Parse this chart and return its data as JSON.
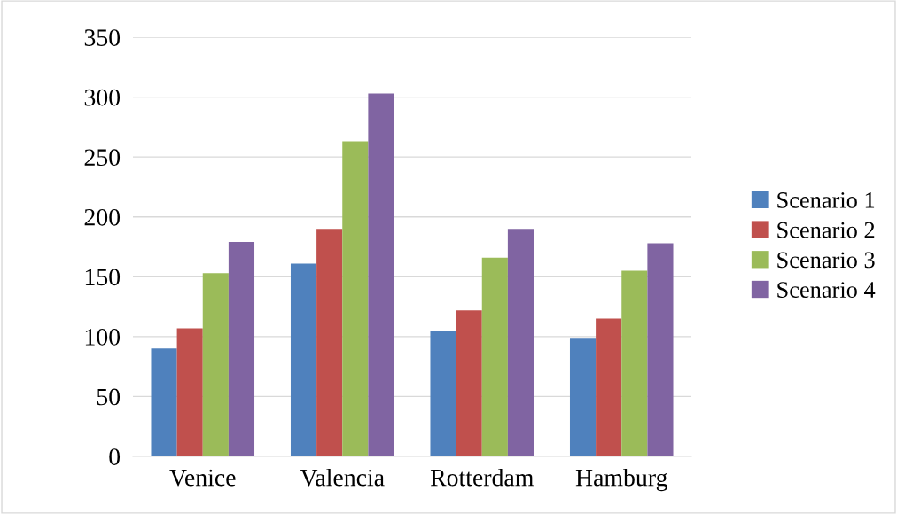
{
  "chart_data": {
    "type": "bar",
    "categories": [
      "Venice",
      "Valencia",
      "Rotterdam",
      "Hamburg"
    ],
    "series": [
      {
        "name": "Scenario 1",
        "color": "#4f81bd",
        "values": [
          90,
          161,
          105,
          99
        ]
      },
      {
        "name": "Scenario 2",
        "color": "#c0504d",
        "values": [
          107,
          190,
          122,
          115
        ]
      },
      {
        "name": "Scenario 3",
        "color": "#9bbb59",
        "values": [
          153,
          263,
          166,
          155
        ]
      },
      {
        "name": "Scenario 4",
        "color": "#8064a2",
        "values": [
          179,
          303,
          190,
          178
        ]
      }
    ],
    "ylim": [
      0,
      350
    ],
    "yticks": [
      0,
      50,
      100,
      150,
      200,
      250,
      300,
      350
    ],
    "grid": "y",
    "legend": "right"
  }
}
